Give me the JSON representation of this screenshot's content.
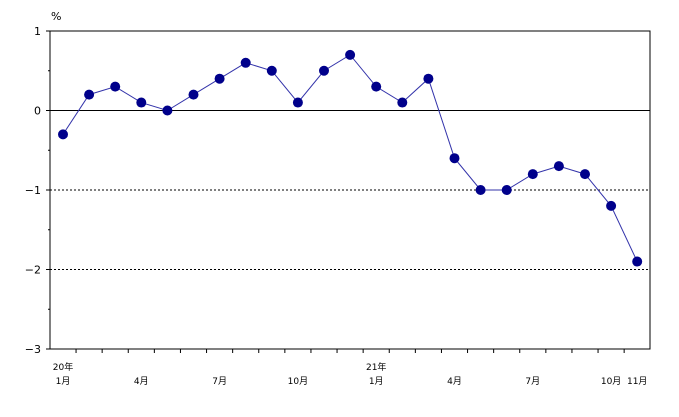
{
  "chart_data": {
    "type": "line",
    "unit_label": "%",
    "ylim": [
      -3,
      1
    ],
    "y_ticks": [
      {
        "value": 1,
        "label": "1"
      },
      {
        "value": 0,
        "label": "0"
      },
      {
        "value": -1,
        "label": "−1"
      },
      {
        "value": -2,
        "label": "−2"
      },
      {
        "value": -3,
        "label": "−3"
      }
    ],
    "reference_lines": [
      0,
      -1,
      -2
    ],
    "x_labels": [
      {
        "index": 0,
        "year": "20年",
        "month": "1月"
      },
      {
        "index": 3,
        "year": "",
        "month": "4月"
      },
      {
        "index": 6,
        "year": "",
        "month": "7月"
      },
      {
        "index": 9,
        "year": "",
        "month": "10月"
      },
      {
        "index": 12,
        "year": "21年",
        "month": "1月"
      },
      {
        "index": 15,
        "year": "",
        "month": "4月"
      },
      {
        "index": 18,
        "year": "",
        "month": "7月"
      },
      {
        "index": 21,
        "year": "",
        "month": "10月"
      },
      {
        "index": 22,
        "year": "",
        "month": "11月"
      }
    ],
    "series": [
      {
        "color": "#00008b",
        "line_color": "#3333aa",
        "values": [
          -0.3,
          0.2,
          0.3,
          0.1,
          0.0,
          0.2,
          0.4,
          0.6,
          0.5,
          0.1,
          0.5,
          0.7,
          0.3,
          0.1,
          0.4,
          -0.6,
          -1.0,
          -1.0,
          -0.8,
          -0.7,
          -0.8,
          -1.2,
          -1.9
        ]
      }
    ],
    "grid": false,
    "legend": "none"
  }
}
